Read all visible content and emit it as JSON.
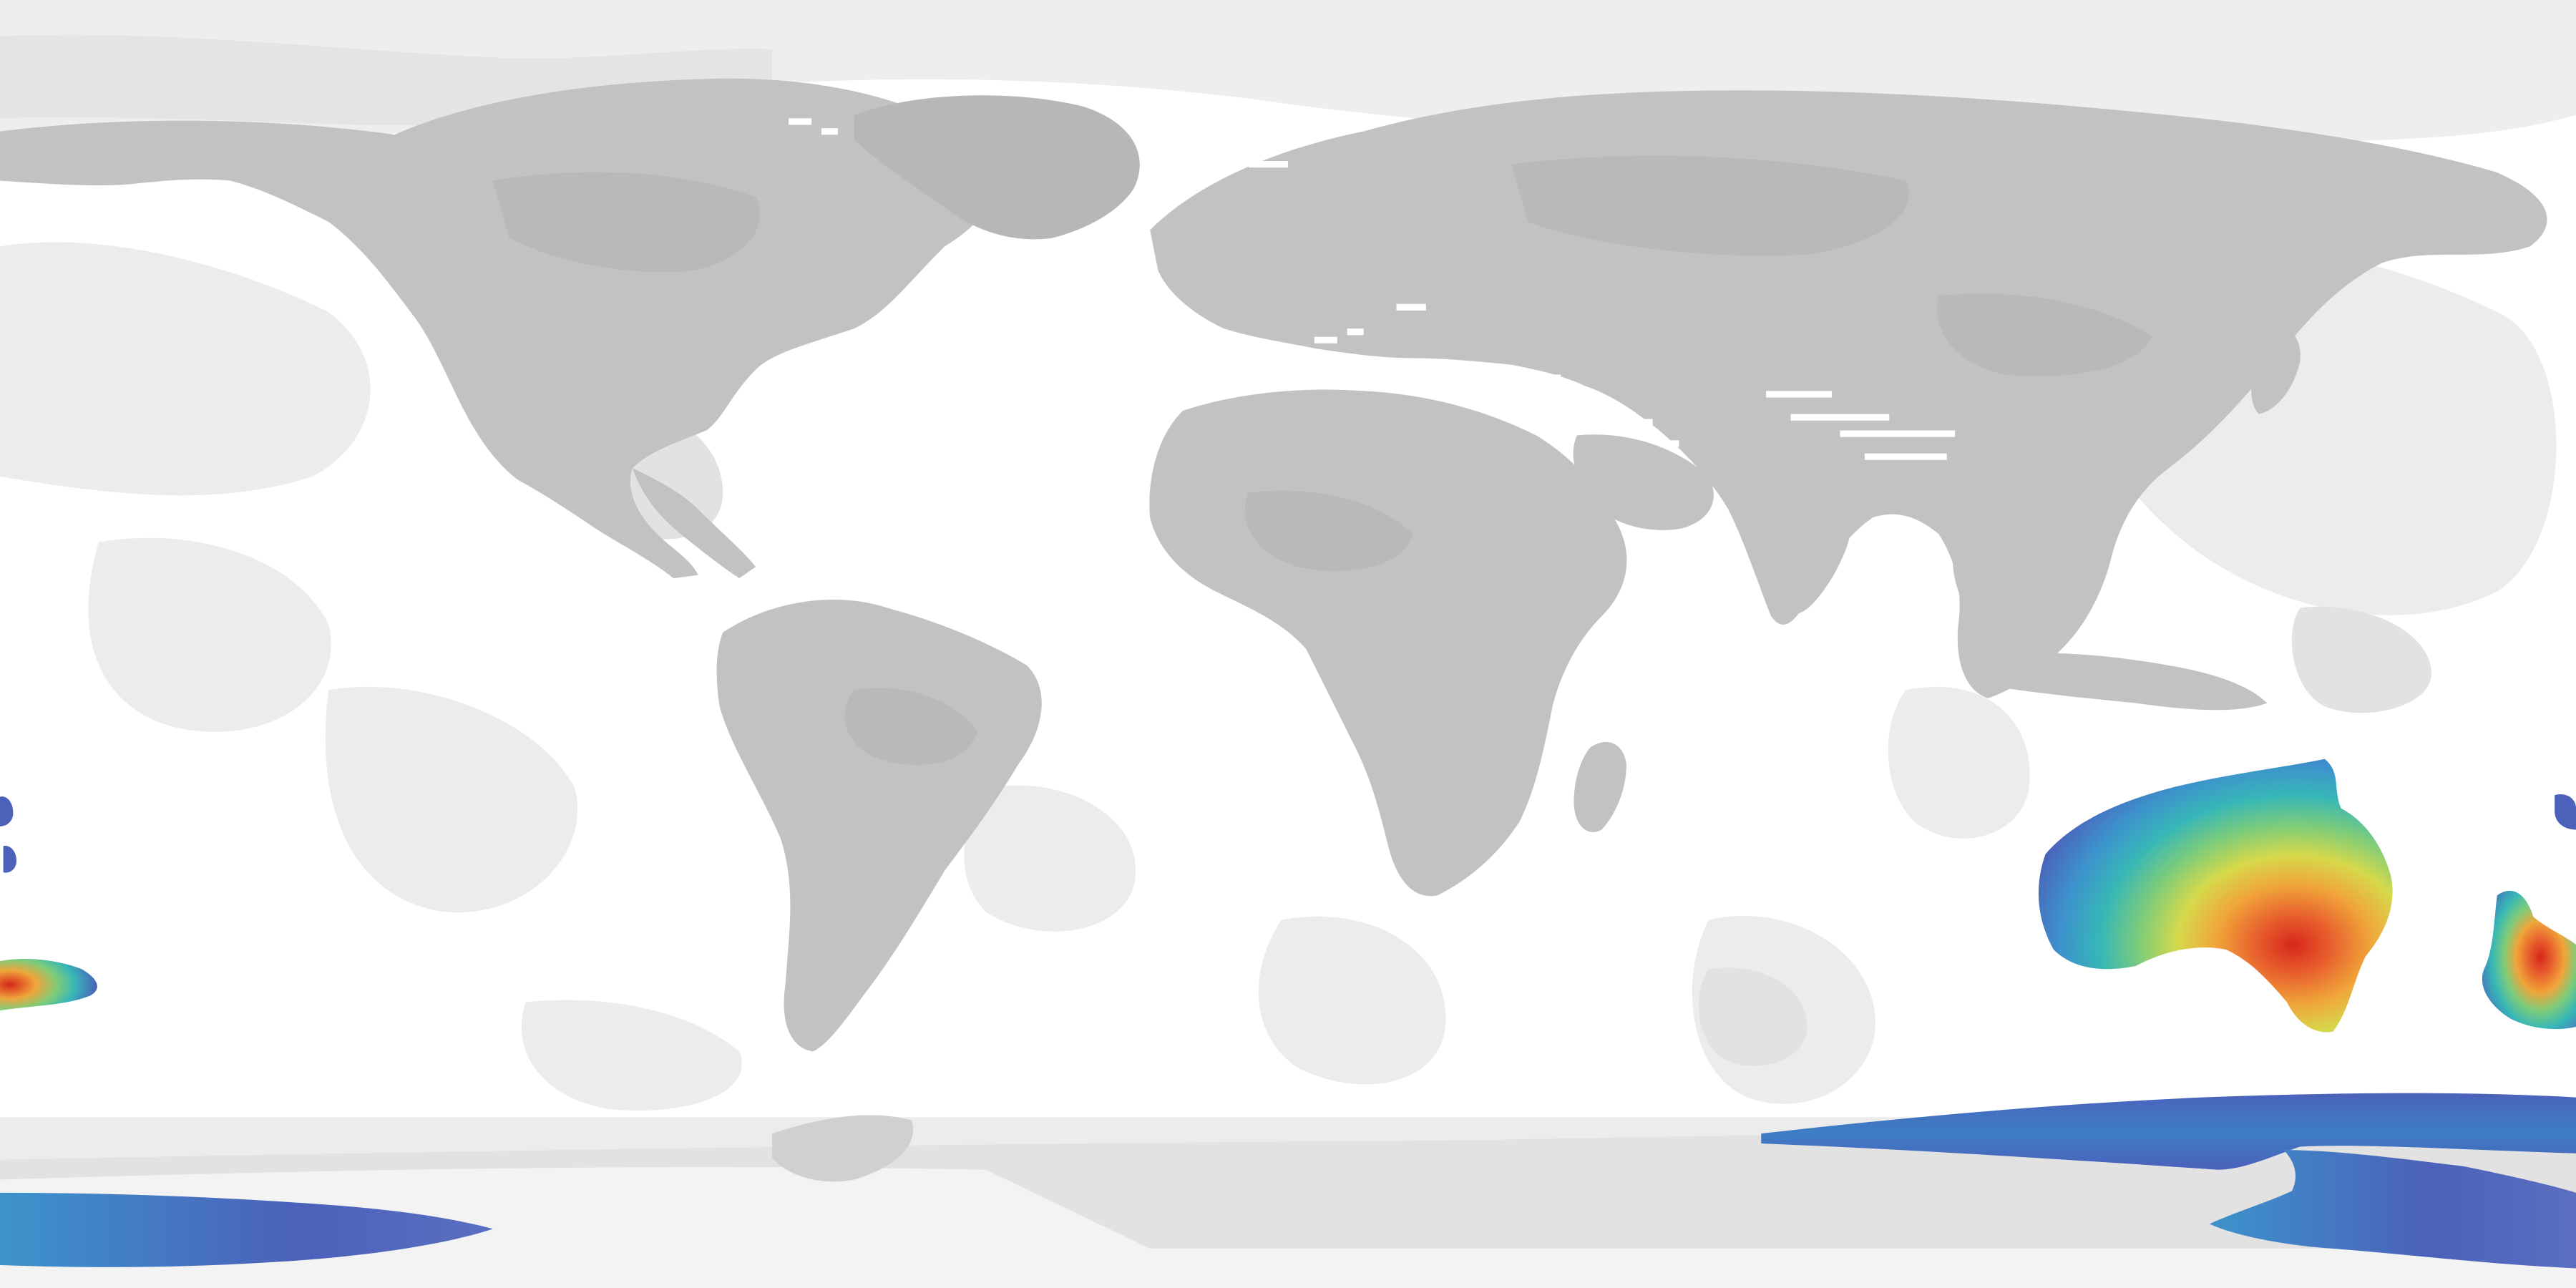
{
  "map": {
    "type": "global-equirectangular-raster",
    "projection": "equirectangular",
    "colors": {
      "ocean_background": "#ffffff",
      "ocean_light_patch": "#ececec",
      "ocean_mid_patch": "#e2e2e2",
      "land_fill": "#c2c2c2",
      "land_dark_fill": "#b7b7b7",
      "ice_fill": "#f3f3f3",
      "heat_scale": [
        "#4b61ba",
        "#3d93cc",
        "#37b7b7",
        "#7dcc7a",
        "#d6d94b",
        "#f0a53a",
        "#e8612d",
        "#d7261c"
      ]
    },
    "legend": null
  }
}
